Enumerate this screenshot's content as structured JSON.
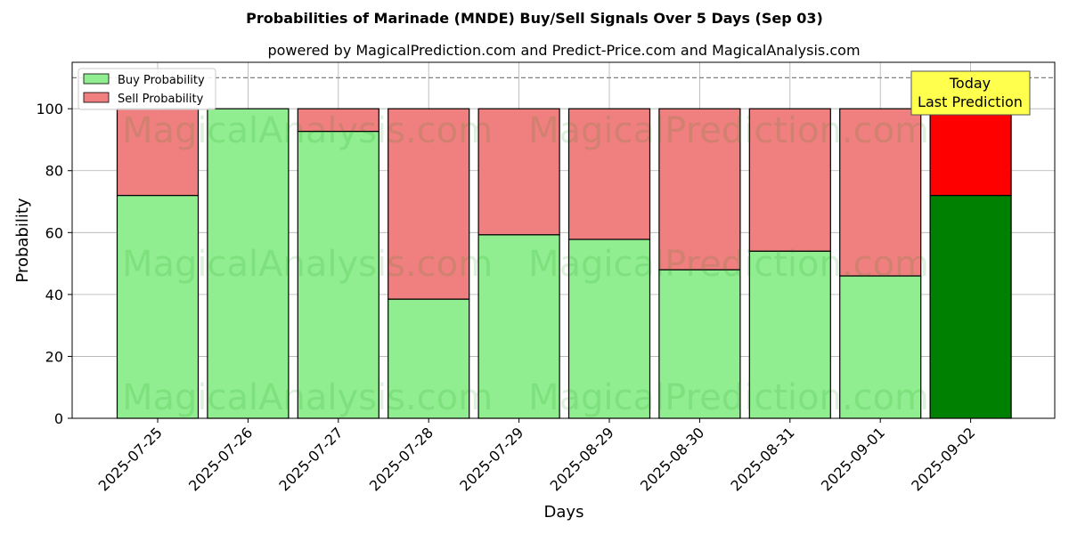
{
  "chart_data": {
    "type": "bar",
    "stacked": true,
    "title": "Probabilities of Marinade (MNDE) Buy/Sell Signals Over 5 Days (Sep 03)",
    "subtitle": "powered by MagicalPrediction.com and Predict-Price.com and MagicalAnalysis.com",
    "xlabel": "Days",
    "ylabel": "Probability",
    "ylim": [
      0,
      115
    ],
    "yticks": [
      0,
      20,
      40,
      60,
      80,
      100
    ],
    "grid": true,
    "legend_position": "top-left",
    "reference_line": 110,
    "categories": [
      "2025-07-25",
      "2025-07-26",
      "2025-07-27",
      "2025-07-28",
      "2025-07-29",
      "2025-08-29",
      "2025-08-30",
      "2025-08-31",
      "2025-09-01",
      "2025-09-02"
    ],
    "series": [
      {
        "name": "Buy Probability",
        "values": [
          72,
          100,
          92.7,
          38.5,
          59.3,
          57.8,
          48,
          54,
          46,
          72
        ],
        "color": "#90ee90",
        "highlight_color": "#008000"
      },
      {
        "name": "Sell Probability",
        "values": [
          28,
          0,
          7.3,
          61.5,
          40.7,
          42.2,
          52,
          46,
          54,
          28
        ],
        "color": "#f08080",
        "highlight_color": "#ff0000"
      }
    ],
    "highlight_index": 9,
    "annotation": {
      "line1": "Today",
      "line2": "Last Prediction",
      "color": "#ffff4d"
    },
    "watermarks": [
      "MagicalAnalysis.com",
      "MagicalPrediction.com"
    ]
  }
}
